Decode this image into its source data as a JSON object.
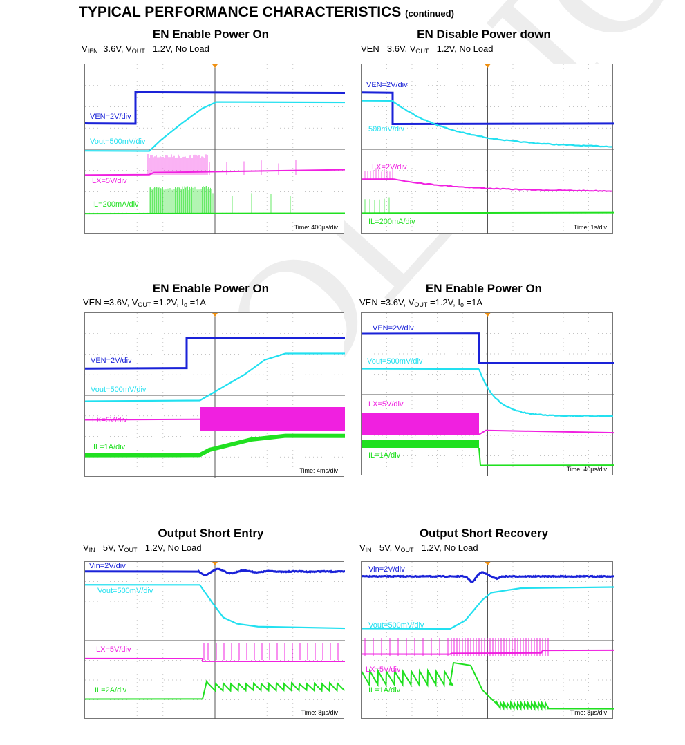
{
  "page": {
    "heading": "TYPICAL PERFORMANCE CHARACTERISTICS",
    "heading_suffix": "(continued)",
    "watermark": "TOLE·ICL"
  },
  "colors": {
    "ven": "#1a22d8",
    "vout": "#22e0f0",
    "lx": "#f020e0",
    "il": "#20e020",
    "grid": "#b0b0b0",
    "trigger": "#f09010"
  },
  "panels": [
    {
      "title": "EN Enable Power On",
      "subtitle": [
        {
          "t": "V"
        },
        {
          "t": "IEN",
          "sub": true
        },
        {
          "t": "=3.6V, V"
        },
        {
          "t": "OUT",
          "sub": true
        },
        {
          "t": " =1.2V, No Load"
        }
      ],
      "channels": [
        {
          "label": "VEN=2V/div"
        },
        {
          "label": "Vout=500mV/div"
        },
        {
          "label": "LX=5V/div"
        },
        {
          "label": "IL=200mA/div"
        }
      ],
      "time": "Time: 400µs/div"
    },
    {
      "title": "EN Disable Power down",
      "subtitle": [
        {
          "t": "VEN =3.6V, V"
        },
        {
          "t": "OUT",
          "sub": true
        },
        {
          "t": " =1.2V, No Load"
        }
      ],
      "channels": [
        {
          "label": "VEN=2V/div"
        },
        {
          "label": "500mV/div"
        },
        {
          "label": "LX=2V/div"
        },
        {
          "label": "IL=200mA/div"
        }
      ],
      "time": "Time: 1s/div"
    },
    {
      "title": "EN Enable Power On",
      "subtitle": [
        {
          "t": "VEN =3.6V, V"
        },
        {
          "t": "OUT",
          "sub": true
        },
        {
          "t": " =1.2V, I"
        },
        {
          "t": "o",
          "sub": true
        },
        {
          "t": " =1A"
        }
      ],
      "channels": [
        {
          "label": "VEN=2V/div"
        },
        {
          "label": "Vout=500mV/div"
        },
        {
          "label": "LX=5V/div"
        },
        {
          "label": "IL=1A/div"
        }
      ],
      "time": "Time: 4ms/div"
    },
    {
      "title": "EN Enable Power On",
      "subtitle": [
        {
          "t": "VEN =3.6V, V"
        },
        {
          "t": "OUT",
          "sub": true
        },
        {
          "t": " =1.2V, I"
        },
        {
          "t": "o",
          "sub": true
        },
        {
          "t": " =1A"
        }
      ],
      "channels": [
        {
          "label": "VEN=2V/div"
        },
        {
          "label": "Vout=500mV/div"
        },
        {
          "label": "LX=5V/div"
        },
        {
          "label": "IL=1A/div"
        }
      ],
      "time": "Time: 40µs/div"
    },
    {
      "title": "Output Short Entry",
      "subtitle": [
        {
          "t": "V"
        },
        {
          "t": "IN",
          "sub": true
        },
        {
          "t": " =5V, V"
        },
        {
          "t": "OUT",
          "sub": true
        },
        {
          "t": " =1.2V, No Load"
        }
      ],
      "channels": [
        {
          "label": "Vin=2V/div"
        },
        {
          "label": "Vout=500mV/div"
        },
        {
          "label": "LX=5V/div"
        },
        {
          "label": "IL=2A/div"
        }
      ],
      "time": "Time:    8µs/div"
    },
    {
      "title": "Output Short Recovery",
      "subtitle": [
        {
          "t": "V"
        },
        {
          "t": "IN",
          "sub": true
        },
        {
          "t": " =5V, V"
        },
        {
          "t": "OUT",
          "sub": true
        },
        {
          "t": " =1.2V, No Load"
        }
      ],
      "channels": [
        {
          "label": "Vin=2V/div"
        },
        {
          "label": "Vout=500mV/div"
        },
        {
          "label": "LX=5V/div"
        },
        {
          "label": "IL=1A/div"
        }
      ],
      "time": "Time: 8µs/div"
    }
  ]
}
